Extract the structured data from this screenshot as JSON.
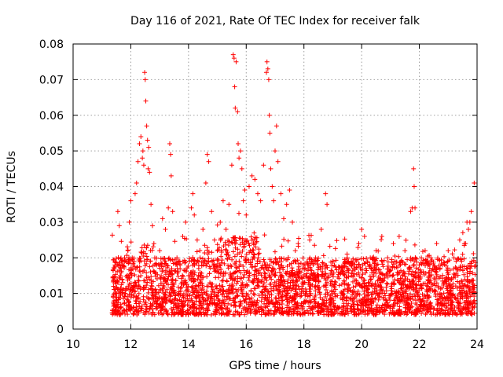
{
  "chart_data": {
    "type": "scatter",
    "title": "Day 116 of 2021, Rate Of TEC Index for receiver falk",
    "xlabel": "GPS time / hours",
    "ylabel": "ROTI / TECUs",
    "xlim": [
      10,
      24
    ],
    "ylim": [
      0,
      0.08
    ],
    "xticks": [
      10,
      12,
      14,
      16,
      18,
      20,
      22,
      24
    ],
    "yticks": [
      0,
      0.01,
      0.02,
      0.03,
      0.04,
      0.05,
      0.06,
      0.07,
      0.08
    ],
    "xtick_labels": [
      "10",
      "12",
      "14",
      "16",
      "18",
      "20",
      "22",
      "24"
    ],
    "ytick_labels": [
      "0",
      "0.01",
      "0.02",
      "0.03",
      "0.04",
      "0.05",
      "0.06",
      "0.07",
      "0.08"
    ],
    "grid": true,
    "marker": "plus",
    "color": "#ff0000",
    "points": [
      [
        11.4,
        0.012
      ],
      [
        11.45,
        0.018
      ],
      [
        11.5,
        0.008
      ],
      [
        11.55,
        0.033
      ],
      [
        11.6,
        0.029
      ],
      [
        11.7,
        0.014
      ],
      [
        11.8,
        0.01
      ],
      [
        11.9,
        0.022
      ],
      [
        11.95,
        0.03
      ],
      [
        12.0,
        0.036
      ],
      [
        12.05,
        0.02
      ],
      [
        12.1,
        0.012
      ],
      [
        12.15,
        0.038
      ],
      [
        12.2,
        0.041
      ],
      [
        12.25,
        0.047
      ],
      [
        12.3,
        0.052
      ],
      [
        12.35,
        0.054
      ],
      [
        12.4,
        0.048
      ],
      [
        12.42,
        0.05
      ],
      [
        12.45,
        0.046
      ],
      [
        12.48,
        0.072
      ],
      [
        12.5,
        0.07
      ],
      [
        12.52,
        0.064
      ],
      [
        12.55,
        0.057
      ],
      [
        12.58,
        0.053
      ],
      [
        12.6,
        0.045
      ],
      [
        12.62,
        0.051
      ],
      [
        12.65,
        0.044
      ],
      [
        12.7,
        0.035
      ],
      [
        12.75,
        0.029
      ],
      [
        12.8,
        0.024
      ],
      [
        12.9,
        0.018
      ],
      [
        13.0,
        0.022
      ],
      [
        13.1,
        0.031
      ],
      [
        13.2,
        0.028
      ],
      [
        13.3,
        0.034
      ],
      [
        13.35,
        0.052
      ],
      [
        13.38,
        0.049
      ],
      [
        13.4,
        0.043
      ],
      [
        13.45,
        0.033
      ],
      [
        13.6,
        0.02
      ],
      [
        13.8,
        0.026
      ],
      [
        13.9,
        0.03
      ],
      [
        14.0,
        0.015
      ],
      [
        14.1,
        0.034
      ],
      [
        14.15,
        0.038
      ],
      [
        14.2,
        0.032
      ],
      [
        14.3,
        0.025
      ],
      [
        14.4,
        0.02
      ],
      [
        14.5,
        0.028
      ],
      [
        14.6,
        0.041
      ],
      [
        14.65,
        0.049
      ],
      [
        14.7,
        0.047
      ],
      [
        14.8,
        0.033
      ],
      [
        14.9,
        0.025
      ],
      [
        15.0,
        0.022
      ],
      [
        15.1,
        0.03
      ],
      [
        15.2,
        0.036
      ],
      [
        15.3,
        0.028
      ],
      [
        15.4,
        0.035
      ],
      [
        15.5,
        0.046
      ],
      [
        15.55,
        0.077
      ],
      [
        15.58,
        0.076
      ],
      [
        15.6,
        0.068
      ],
      [
        15.62,
        0.062
      ],
      [
        15.65,
        0.075
      ],
      [
        15.7,
        0.061
      ],
      [
        15.72,
        0.052
      ],
      [
        15.75,
        0.048
      ],
      [
        15.8,
        0.05
      ],
      [
        15.85,
        0.045
      ],
      [
        15.9,
        0.036
      ],
      [
        15.95,
        0.039
      ],
      [
        16.0,
        0.032
      ],
      [
        16.1,
        0.04
      ],
      [
        16.2,
        0.043
      ],
      [
        16.3,
        0.042
      ],
      [
        16.4,
        0.038
      ],
      [
        16.5,
        0.036
      ],
      [
        16.6,
        0.046
      ],
      [
        16.7,
        0.072
      ],
      [
        16.72,
        0.075
      ],
      [
        16.75,
        0.073
      ],
      [
        16.78,
        0.07
      ],
      [
        16.8,
        0.06
      ],
      [
        16.82,
        0.055
      ],
      [
        16.85,
        0.045
      ],
      [
        16.9,
        0.04
      ],
      [
        16.95,
        0.036
      ],
      [
        17.0,
        0.05
      ],
      [
        17.05,
        0.057
      ],
      [
        17.1,
        0.047
      ],
      [
        17.2,
        0.038
      ],
      [
        17.3,
        0.031
      ],
      [
        17.4,
        0.035
      ],
      [
        17.5,
        0.039
      ],
      [
        17.6,
        0.03
      ],
      [
        17.7,
        0.022
      ],
      [
        17.8,
        0.024
      ],
      [
        17.9,
        0.016
      ],
      [
        18.0,
        0.018
      ],
      [
        18.2,
        0.025
      ],
      [
        18.4,
        0.02
      ],
      [
        18.6,
        0.028
      ],
      [
        18.75,
        0.038
      ],
      [
        18.8,
        0.035
      ],
      [
        19.0,
        0.019
      ],
      [
        19.2,
        0.016
      ],
      [
        19.5,
        0.02
      ],
      [
        19.7,
        0.015
      ],
      [
        19.9,
        0.024
      ],
      [
        20.0,
        0.028
      ],
      [
        20.1,
        0.026
      ],
      [
        20.3,
        0.02
      ],
      [
        20.5,
        0.022
      ],
      [
        20.7,
        0.026
      ],
      [
        20.9,
        0.02
      ],
      [
        21.1,
        0.024
      ],
      [
        21.3,
        0.026
      ],
      [
        21.5,
        0.022
      ],
      [
        21.7,
        0.033
      ],
      [
        21.75,
        0.034
      ],
      [
        21.8,
        0.045
      ],
      [
        21.82,
        0.04
      ],
      [
        21.85,
        0.034
      ],
      [
        22.0,
        0.018
      ],
      [
        22.2,
        0.022
      ],
      [
        22.4,
        0.02
      ],
      [
        22.6,
        0.024
      ],
      [
        22.8,
        0.018
      ],
      [
        23.0,
        0.022
      ],
      [
        23.2,
        0.02
      ],
      [
        23.4,
        0.025
      ],
      [
        23.5,
        0.021
      ],
      [
        23.6,
        0.024
      ],
      [
        23.65,
        0.03
      ],
      [
        23.7,
        0.028
      ],
      [
        23.75,
        0.03
      ],
      [
        23.8,
        0.033
      ],
      [
        23.9,
        0.041
      ]
    ],
    "dense_band": {
      "x_range": [
        11.35,
        23.95
      ],
      "base_low": 0.004,
      "base_high": 0.02,
      "n_points": 3200
    }
  }
}
